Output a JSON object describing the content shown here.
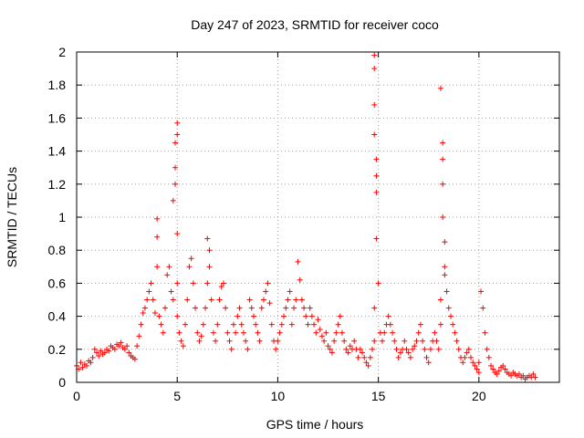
{
  "chart_data": {
    "type": "scatter",
    "title": "Day 247 of 2023, SRMTID for receiver coco",
    "xlabel": "GPS time / hours",
    "ylabel": "SRMTID / TECUs",
    "xlim": [
      0,
      24
    ],
    "ylim": [
      0,
      2
    ],
    "xticks": [
      0,
      5,
      10,
      15,
      20
    ],
    "yticks": [
      0,
      0.2,
      0.4,
      0.6,
      0.8,
      1,
      1.2,
      1.4,
      1.6,
      1.8,
      2
    ],
    "xtick_labels": [
      "0",
      "5",
      "10",
      "15",
      "20"
    ],
    "ytick_labels": [
      "0",
      "0.2",
      "0.4",
      "0.6",
      "0.8",
      "1",
      "1.2",
      "1.4",
      "1.6",
      "1.8",
      "2"
    ],
    "grid": true,
    "marker": "plus",
    "color": "#ff0000",
    "series": [
      {
        "name": "SRMTID",
        "x": [
          0.0,
          0.1,
          0.2,
          0.3,
          0.4,
          0.5,
          0.6,
          0.7,
          0.8,
          0.9,
          1.0,
          1.1,
          1.2,
          1.3,
          1.4,
          1.5,
          1.6,
          1.7,
          1.8,
          1.9,
          2.0,
          2.1,
          2.2,
          2.3,
          2.4,
          2.5,
          2.6,
          2.7,
          2.8,
          2.9,
          3.0,
          3.1,
          3.2,
          3.3,
          3.4,
          3.5,
          3.6,
          3.7,
          3.8,
          3.9,
          4.0,
          4.0,
          4.0,
          4.1,
          4.2,
          4.3,
          4.4,
          4.5,
          4.6,
          4.7,
          4.8,
          4.8,
          4.9,
          4.9,
          4.9,
          5.0,
          5.0,
          5.0,
          5.0,
          5.0,
          5.1,
          5.2,
          5.3,
          5.4,
          5.5,
          5.6,
          5.7,
          5.8,
          5.9,
          6.0,
          6.1,
          6.2,
          6.3,
          6.4,
          6.5,
          6.5,
          6.6,
          6.6,
          6.7,
          6.8,
          6.9,
          7.0,
          7.1,
          7.2,
          7.3,
          7.4,
          7.5,
          7.6,
          7.7,
          7.8,
          7.9,
          8.0,
          8.1,
          8.2,
          8.3,
          8.4,
          8.5,
          8.6,
          8.7,
          8.8,
          8.9,
          9.0,
          9.1,
          9.2,
          9.3,
          9.4,
          9.5,
          9.6,
          9.7,
          9.8,
          9.9,
          10.0,
          10.1,
          10.2,
          10.3,
          10.4,
          10.5,
          10.6,
          10.7,
          10.8,
          10.9,
          11.0,
          11.1,
          11.2,
          11.3,
          11.4,
          11.5,
          11.6,
          11.7,
          11.8,
          11.9,
          12.0,
          12.1,
          12.2,
          12.3,
          12.4,
          12.5,
          12.6,
          12.7,
          12.8,
          12.9,
          13.0,
          13.1,
          13.2,
          13.3,
          13.4,
          13.5,
          13.6,
          13.7,
          13.8,
          13.9,
          14.0,
          14.1,
          14.2,
          14.3,
          14.4,
          14.5,
          14.6,
          14.7,
          14.8,
          14.8,
          14.8,
          14.8,
          14.8,
          14.8,
          14.9,
          14.9,
          14.9,
          14.9,
          15.0,
          15.1,
          15.2,
          15.3,
          15.4,
          15.5,
          15.6,
          15.7,
          15.8,
          15.9,
          16.0,
          16.1,
          16.2,
          16.3,
          16.4,
          16.5,
          16.6,
          16.7,
          16.8,
          16.9,
          17.0,
          17.1,
          17.2,
          17.3,
          17.4,
          17.5,
          17.6,
          17.7,
          17.8,
          17.9,
          18.0,
          18.1,
          18.1,
          18.1,
          18.2,
          18.2,
          18.2,
          18.2,
          18.3,
          18.3,
          18.3,
          18.4,
          18.5,
          18.6,
          18.7,
          18.8,
          18.9,
          19.0,
          19.1,
          19.2,
          19.3,
          19.4,
          19.5,
          19.6,
          19.7,
          19.8,
          19.9,
          20.0,
          20.0,
          20.1,
          20.2,
          20.3,
          20.4,
          20.5,
          20.6,
          20.7,
          20.8,
          20.9,
          21.0,
          21.1,
          21.2,
          21.3,
          21.4,
          21.5,
          21.6,
          21.7,
          21.8,
          21.9,
          22.0,
          22.1,
          22.2,
          22.3,
          22.4,
          22.5,
          22.6,
          22.7,
          22.8
        ],
        "y": [
          0.1,
          0.08,
          0.12,
          0.09,
          0.11,
          0.1,
          0.13,
          0.12,
          0.15,
          0.2,
          0.18,
          0.16,
          0.19,
          0.17,
          0.18,
          0.2,
          0.19,
          0.22,
          0.21,
          0.2,
          0.23,
          0.22,
          0.24,
          0.21,
          0.2,
          0.22,
          0.18,
          0.16,
          0.15,
          0.14,
          0.22,
          0.28,
          0.35,
          0.42,
          0.45,
          0.5,
          0.55,
          0.6,
          0.5,
          0.42,
          0.99,
          0.88,
          0.7,
          0.4,
          0.35,
          0.3,
          0.45,
          0.65,
          0.7,
          0.55,
          0.5,
          1.1,
          1.2,
          1.3,
          1.45,
          1.57,
          1.5,
          0.9,
          0.6,
          0.4,
          0.3,
          0.25,
          0.22,
          0.35,
          0.5,
          0.7,
          0.75,
          0.6,
          0.45,
          0.3,
          0.25,
          0.28,
          0.35,
          0.45,
          0.6,
          0.87,
          0.8,
          0.7,
          0.5,
          0.3,
          0.25,
          0.35,
          0.5,
          0.58,
          0.6,
          0.45,
          0.3,
          0.25,
          0.2,
          0.35,
          0.3,
          0.4,
          0.45,
          0.35,
          0.3,
          0.25,
          0.2,
          0.5,
          0.45,
          0.4,
          0.35,
          0.3,
          0.25,
          0.45,
          0.5,
          0.55,
          0.6,
          0.48,
          0.35,
          0.25,
          0.2,
          0.25,
          0.3,
          0.35,
          0.4,
          0.45,
          0.5,
          0.55,
          0.35,
          0.45,
          0.5,
          0.73,
          0.62,
          0.5,
          0.45,
          0.4,
          0.35,
          0.45,
          0.4,
          0.35,
          0.3,
          0.38,
          0.32,
          0.28,
          0.25,
          0.3,
          0.22,
          0.2,
          0.18,
          0.25,
          0.3,
          0.35,
          0.4,
          0.3,
          0.25,
          0.2,
          0.18,
          0.22,
          0.2,
          0.25,
          0.2,
          0.15,
          0.2,
          0.18,
          0.15,
          0.12,
          0.1,
          0.15,
          0.2,
          0.25,
          0.45,
          1.98,
          1.9,
          1.68,
          1.5,
          1.35,
          1.25,
          1.15,
          0.87,
          0.6,
          0.3,
          0.25,
          0.3,
          0.35,
          0.4,
          0.35,
          0.3,
          0.25,
          0.2,
          0.15,
          0.18,
          0.2,
          0.25,
          0.2,
          0.18,
          0.15,
          0.2,
          0.22,
          0.25,
          0.3,
          0.35,
          0.25,
          0.2,
          0.15,
          0.12,
          0.2,
          0.25,
          0.3,
          0.25,
          0.2,
          0.35,
          0.5,
          1.78,
          1.45,
          1.35,
          1.2,
          1.0,
          0.85,
          0.7,
          0.65,
          0.55,
          0.45,
          0.4,
          0.35,
          0.3,
          0.25,
          0.2,
          0.15,
          0.12,
          0.15,
          0.18,
          0.2,
          0.15,
          0.12,
          0.1,
          0.08,
          0.06,
          0.12,
          0.55,
          0.45,
          0.3,
          0.2,
          0.15,
          0.1,
          0.08,
          0.06,
          0.05,
          0.07,
          0.09,
          0.1,
          0.08,
          0.06,
          0.05,
          0.04,
          0.06,
          0.05,
          0.04,
          0.05,
          0.03,
          0.04,
          0.02,
          0.03,
          0.04,
          0.03,
          0.05,
          0.03
        ]
      }
    ]
  }
}
